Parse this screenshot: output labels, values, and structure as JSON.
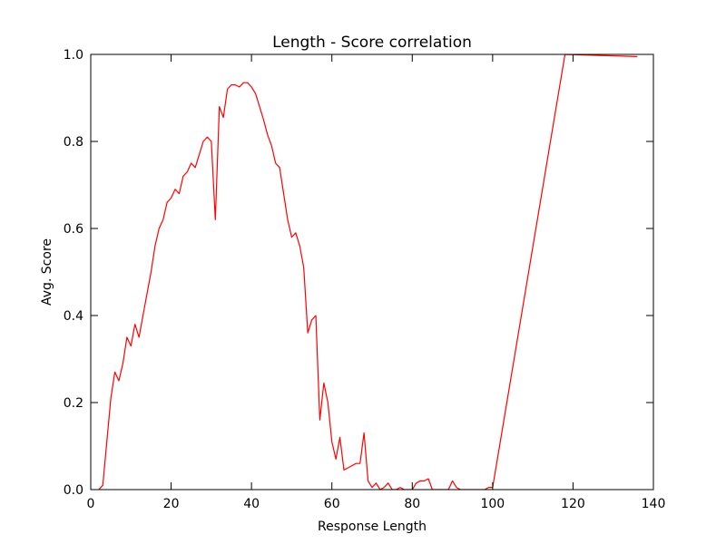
{
  "chart_data": {
    "type": "line",
    "title": "Length - Score correlation",
    "xlabel": "Response Length",
    "ylabel": "Avg. Score",
    "xlim": [
      0,
      140
    ],
    "ylim": [
      0,
      1.0
    ],
    "xticks": [
      0,
      20,
      40,
      60,
      80,
      100,
      120,
      140
    ],
    "xtick_labels": [
      "0",
      "20",
      "40",
      "60",
      "80",
      "100",
      "120",
      "140"
    ],
    "yticks": [
      0,
      0.2,
      0.4,
      0.6,
      0.8,
      1.0
    ],
    "ytick_labels": [
      "0.0",
      "0.2",
      "0.4",
      "0.6",
      "0.8",
      "1.0"
    ],
    "grid": false,
    "legend": false,
    "series": [
      {
        "color": "#ff0000",
        "x": [
          2,
          3,
          4,
          5,
          6,
          7,
          8,
          9,
          10,
          11,
          12,
          13,
          14,
          15,
          16,
          17,
          18,
          19,
          20,
          21,
          22,
          23,
          24,
          25,
          26,
          27,
          28,
          29,
          30,
          31,
          32,
          33,
          34,
          35,
          36,
          37,
          38,
          39,
          40,
          41,
          42,
          43,
          44,
          45,
          46,
          47,
          48,
          49,
          50,
          51,
          52,
          53,
          54,
          55,
          56,
          57,
          58,
          59,
          60,
          61,
          62,
          63,
          64,
          65,
          66,
          67,
          68,
          69,
          70,
          71,
          72,
          73,
          74,
          75,
          76,
          77,
          78,
          79,
          80,
          81,
          82,
          83,
          84,
          85,
          86,
          87,
          88,
          89,
          90,
          91,
          92,
          93,
          94,
          95,
          96,
          97,
          98,
          99,
          100,
          118,
          136
        ],
        "values": [
          0,
          0.01,
          0.11,
          0.21,
          0.27,
          0.25,
          0.29,
          0.35,
          0.33,
          0.38,
          0.35,
          0.4,
          0.45,
          0.5,
          0.56,
          0.6,
          0.62,
          0.66,
          0.67,
          0.69,
          0.68,
          0.72,
          0.73,
          0.75,
          0.74,
          0.77,
          0.8,
          0.81,
          0.8,
          0.62,
          0.88,
          0.855,
          0.92,
          0.93,
          0.93,
          0.925,
          0.935,
          0.935,
          0.925,
          0.91,
          0.88,
          0.85,
          0.815,
          0.79,
          0.75,
          0.74,
          0.68,
          0.62,
          0.58,
          0.59,
          0.56,
          0.51,
          0.36,
          0.39,
          0.4,
          0.16,
          0.245,
          0.2,
          0.11,
          0.07,
          0.12,
          0.045,
          0.05,
          0.055,
          0.06,
          0.06,
          0.13,
          0.02,
          0.005,
          0.015,
          0.0,
          0.005,
          0.015,
          0.0,
          0.0,
          0.005,
          0.0,
          0.0,
          0.0,
          0.015,
          0.02,
          0.02,
          0.025,
          0.0,
          0.0,
          0.0,
          0.0,
          0.0,
          0.02,
          0.005,
          0.0,
          0.0,
          0.0,
          0.0,
          0.0,
          0.0,
          0.0,
          0.005,
          0.005,
          1.0,
          0.995
        ]
      }
    ]
  }
}
